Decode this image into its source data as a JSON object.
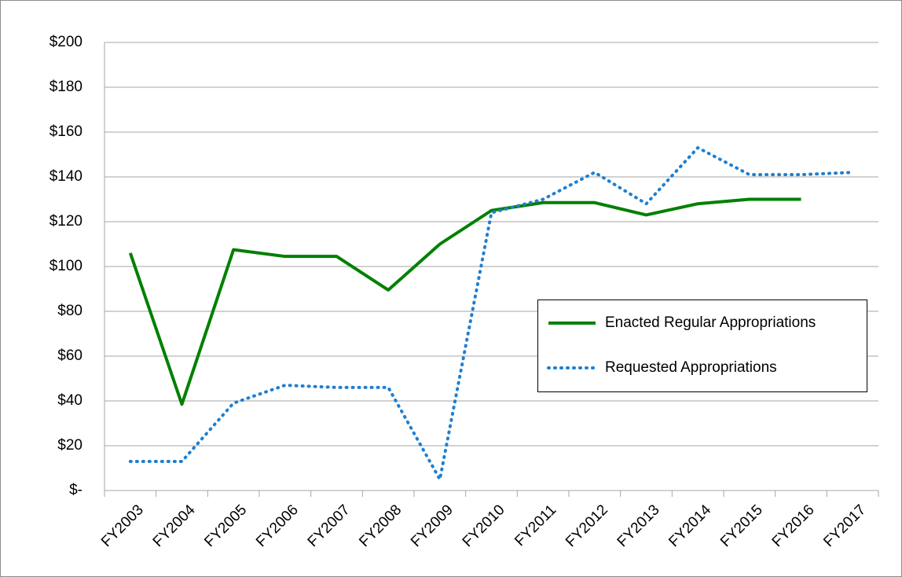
{
  "chart_data": {
    "type": "line",
    "categories": [
      "FY2003",
      "FY2004",
      "FY2005",
      "FY2006",
      "FY2007",
      "FY2008",
      "FY2009",
      "FY2010",
      "FY2011",
      "FY2012",
      "FY2013",
      "FY2014",
      "FY2015",
      "FY2016",
      "FY2017"
    ],
    "series": [
      {
        "name": "Enacted Regular Appropriations",
        "color": "#008000",
        "style": "solid",
        "values": [
          106,
          38.5,
          107.5,
          104.5,
          104.5,
          89.5,
          110,
          125,
          128.5,
          128.5,
          123,
          128,
          130,
          130,
          null
        ]
      },
      {
        "name": "Requested Appropriations",
        "color": "#1f7fd0",
        "style": "dotted",
        "values": [
          13,
          13,
          39,
          47,
          46,
          46,
          5,
          124,
          130,
          142,
          128,
          153,
          141,
          141,
          142
        ]
      }
    ],
    "ylim": [
      0,
      200
    ],
    "yticks": [
      {
        "value": 0,
        "label": "$-"
      },
      {
        "value": 20,
        "label": "$20"
      },
      {
        "value": 40,
        "label": "$40"
      },
      {
        "value": 60,
        "label": "$60"
      },
      {
        "value": 80,
        "label": "$80"
      },
      {
        "value": 100,
        "label": "$100"
      },
      {
        "value": 120,
        "label": "$120"
      },
      {
        "value": 140,
        "label": "$140"
      },
      {
        "value": 160,
        "label": "$160"
      },
      {
        "value": 180,
        "label": "$180"
      },
      {
        "value": 200,
        "label": "$200"
      }
    ],
    "grid": true,
    "legend": "right"
  }
}
